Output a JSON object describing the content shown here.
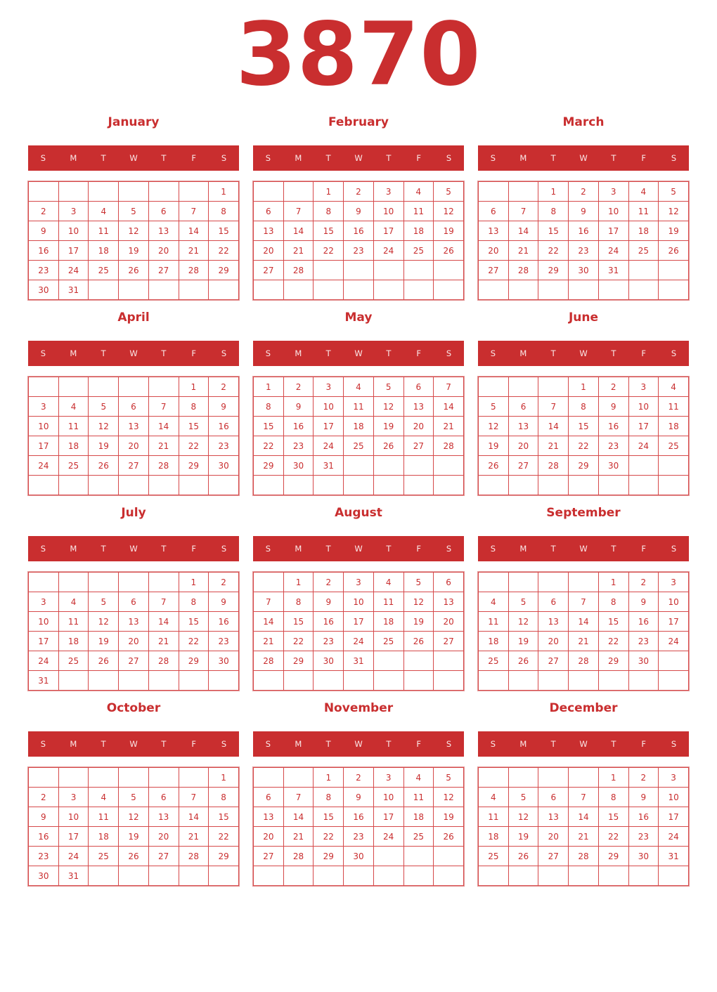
{
  "year": "3870",
  "weekdays": [
    "S",
    "M",
    "T",
    "W",
    "T",
    "F",
    "S"
  ],
  "accent_color": "#c92e2f",
  "months": [
    {
      "name": "January",
      "weeks": [
        [
          null,
          null,
          null,
          null,
          null,
          null,
          1
        ],
        [
          2,
          3,
          4,
          5,
          6,
          7,
          8
        ],
        [
          9,
          10,
          11,
          12,
          13,
          14,
          15
        ],
        [
          16,
          17,
          18,
          19,
          20,
          21,
          22
        ],
        [
          23,
          24,
          25,
          26,
          27,
          28,
          29
        ],
        [
          30,
          31,
          null,
          null,
          null,
          null,
          null
        ]
      ]
    },
    {
      "name": "February",
      "weeks": [
        [
          null,
          null,
          1,
          2,
          3,
          4,
          5
        ],
        [
          6,
          7,
          8,
          9,
          10,
          11,
          12
        ],
        [
          13,
          14,
          15,
          16,
          17,
          18,
          19
        ],
        [
          20,
          21,
          22,
          23,
          24,
          25,
          26
        ],
        [
          27,
          28,
          null,
          null,
          null,
          null,
          null
        ],
        [
          null,
          null,
          null,
          null,
          null,
          null,
          null
        ]
      ]
    },
    {
      "name": "March",
      "weeks": [
        [
          null,
          null,
          1,
          2,
          3,
          4,
          5
        ],
        [
          6,
          7,
          8,
          9,
          10,
          11,
          12
        ],
        [
          13,
          14,
          15,
          16,
          17,
          18,
          19
        ],
        [
          20,
          21,
          22,
          23,
          24,
          25,
          26
        ],
        [
          27,
          28,
          29,
          30,
          31,
          null,
          null
        ],
        [
          null,
          null,
          null,
          null,
          null,
          null,
          null
        ]
      ]
    },
    {
      "name": "April",
      "weeks": [
        [
          null,
          null,
          null,
          null,
          null,
          1,
          2
        ],
        [
          3,
          4,
          5,
          6,
          7,
          8,
          9
        ],
        [
          10,
          11,
          12,
          13,
          14,
          15,
          16
        ],
        [
          17,
          18,
          19,
          20,
          21,
          22,
          23
        ],
        [
          24,
          25,
          26,
          27,
          28,
          29,
          30
        ],
        [
          null,
          null,
          null,
          null,
          null,
          null,
          null
        ]
      ]
    },
    {
      "name": "May",
      "weeks": [
        [
          1,
          2,
          3,
          4,
          5,
          6,
          7
        ],
        [
          8,
          9,
          10,
          11,
          12,
          13,
          14
        ],
        [
          15,
          16,
          17,
          18,
          19,
          20,
          21
        ],
        [
          22,
          23,
          24,
          25,
          26,
          27,
          28
        ],
        [
          29,
          30,
          31,
          null,
          null,
          null,
          null
        ],
        [
          null,
          null,
          null,
          null,
          null,
          null,
          null
        ]
      ]
    },
    {
      "name": "June",
      "weeks": [
        [
          null,
          null,
          null,
          1,
          2,
          3,
          4
        ],
        [
          5,
          6,
          7,
          8,
          9,
          10,
          11
        ],
        [
          12,
          13,
          14,
          15,
          16,
          17,
          18
        ],
        [
          19,
          20,
          21,
          22,
          23,
          24,
          25
        ],
        [
          26,
          27,
          28,
          29,
          30,
          null,
          null
        ],
        [
          null,
          null,
          null,
          null,
          null,
          null,
          null
        ]
      ]
    },
    {
      "name": "July",
      "weeks": [
        [
          null,
          null,
          null,
          null,
          null,
          1,
          2
        ],
        [
          3,
          4,
          5,
          6,
          7,
          8,
          9
        ],
        [
          10,
          11,
          12,
          13,
          14,
          15,
          16
        ],
        [
          17,
          18,
          19,
          20,
          21,
          22,
          23
        ],
        [
          24,
          25,
          26,
          27,
          28,
          29,
          30
        ],
        [
          31,
          null,
          null,
          null,
          null,
          null,
          null
        ]
      ]
    },
    {
      "name": "August",
      "weeks": [
        [
          null,
          1,
          2,
          3,
          4,
          5,
          6
        ],
        [
          7,
          8,
          9,
          10,
          11,
          12,
          13
        ],
        [
          14,
          15,
          16,
          17,
          18,
          19,
          20
        ],
        [
          21,
          22,
          23,
          24,
          25,
          26,
          27
        ],
        [
          28,
          29,
          30,
          31,
          null,
          null,
          null
        ],
        [
          null,
          null,
          null,
          null,
          null,
          null,
          null
        ]
      ]
    },
    {
      "name": "September",
      "weeks": [
        [
          null,
          null,
          null,
          null,
          1,
          2,
          3
        ],
        [
          4,
          5,
          6,
          7,
          8,
          9,
          10
        ],
        [
          11,
          12,
          13,
          14,
          15,
          16,
          17
        ],
        [
          18,
          19,
          20,
          21,
          22,
          23,
          24
        ],
        [
          25,
          26,
          27,
          28,
          29,
          30,
          null
        ],
        [
          null,
          null,
          null,
          null,
          null,
          null,
          null
        ]
      ]
    },
    {
      "name": "October",
      "weeks": [
        [
          null,
          null,
          null,
          null,
          null,
          null,
          1
        ],
        [
          2,
          3,
          4,
          5,
          6,
          7,
          8
        ],
        [
          9,
          10,
          11,
          12,
          13,
          14,
          15
        ],
        [
          16,
          17,
          18,
          19,
          20,
          21,
          22
        ],
        [
          23,
          24,
          25,
          26,
          27,
          28,
          29
        ],
        [
          30,
          31,
          null,
          null,
          null,
          null,
          null
        ]
      ]
    },
    {
      "name": "November",
      "weeks": [
        [
          null,
          null,
          1,
          2,
          3,
          4,
          5
        ],
        [
          6,
          7,
          8,
          9,
          10,
          11,
          12
        ],
        [
          13,
          14,
          15,
          16,
          17,
          18,
          19
        ],
        [
          20,
          21,
          22,
          23,
          24,
          25,
          26
        ],
        [
          27,
          28,
          29,
          30,
          null,
          null,
          null
        ],
        [
          null,
          null,
          null,
          null,
          null,
          null,
          null
        ]
      ]
    },
    {
      "name": "December",
      "weeks": [
        [
          null,
          null,
          null,
          null,
          1,
          2,
          3
        ],
        [
          4,
          5,
          6,
          7,
          8,
          9,
          10
        ],
        [
          11,
          12,
          13,
          14,
          15,
          16,
          17
        ],
        [
          18,
          19,
          20,
          21,
          22,
          23,
          24
        ],
        [
          25,
          26,
          27,
          28,
          29,
          30,
          31
        ],
        [
          null,
          null,
          null,
          null,
          null,
          null,
          null
        ]
      ]
    }
  ]
}
